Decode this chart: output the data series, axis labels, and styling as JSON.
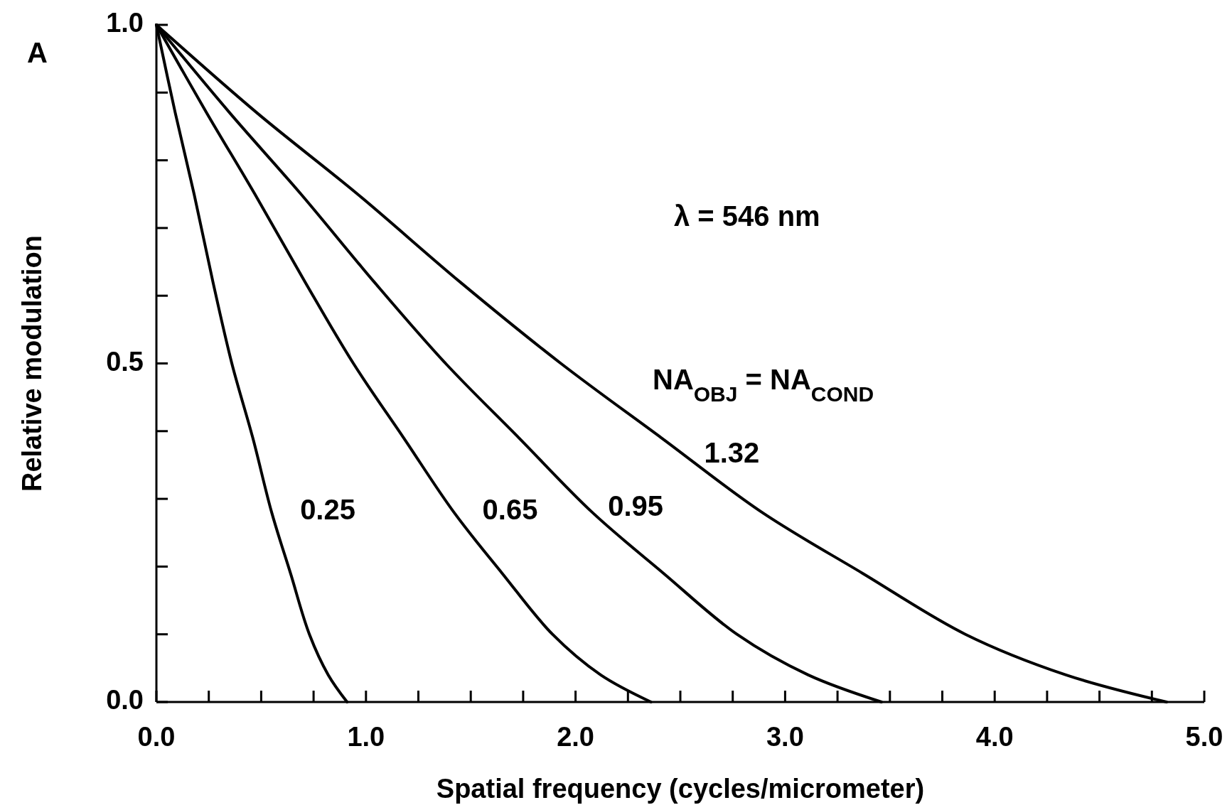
{
  "chart_data": {
    "type": "line",
    "xlabel": "Spatial frequency (cycles/micrometer)",
    "ylabel": "Relative modulation",
    "annotations": [
      "A",
      "λ = 546 nm",
      "NA$_{OBJ}$ = NA$_{COND}$"
    ],
    "xlim": [
      0,
      5
    ],
    "ylim": [
      0,
      1
    ],
    "xticks": [
      {
        "value": 0,
        "label": "0.0"
      },
      {
        "value": 0.25,
        "label": null
      },
      {
        "value": 0.5,
        "label": null
      },
      {
        "value": 0.75,
        "label": null
      },
      {
        "value": 1,
        "label": "1.0"
      },
      {
        "value": 1.25,
        "label": null
      },
      {
        "value": 1.5,
        "label": null
      },
      {
        "value": 1.75,
        "label": null
      },
      {
        "value": 2,
        "label": "2.0"
      },
      {
        "value": 2.25,
        "label": null
      },
      {
        "value": 2.5,
        "label": null
      },
      {
        "value": 2.75,
        "label": null
      },
      {
        "value": 3,
        "label": "3.0"
      },
      {
        "value": 3.25,
        "label": null
      },
      {
        "value": 3.5,
        "label": null
      },
      {
        "value": 3.75,
        "label": null
      },
      {
        "value": 4,
        "label": "4.0"
      },
      {
        "value": 4.25,
        "label": null
      },
      {
        "value": 4.5,
        "label": null
      },
      {
        "value": 4.75,
        "label": null
      },
      {
        "value": 5,
        "label": "5.0"
      }
    ],
    "yticks": [
      {
        "value": 0,
        "label": "0.0"
      },
      {
        "value": 0.1,
        "label": null
      },
      {
        "value": 0.2,
        "label": null
      },
      {
        "value": 0.3,
        "label": null
      },
      {
        "value": 0.4,
        "label": null
      },
      {
        "value": 0.5,
        "label": "0.5"
      },
      {
        "value": 0.6,
        "label": null
      },
      {
        "value": 0.7,
        "label": null
      },
      {
        "value": 0.8,
        "label": null
      },
      {
        "value": 0.9,
        "label": null
      },
      {
        "value": 1,
        "label": "1.0"
      }
    ],
    "grid": false,
    "marker": "none",
    "line_style": "solid",
    "series": [
      {
        "name": "0.25",
        "color": "#000000",
        "x": [
          0,
          0.09,
          0.18,
          0.27,
          0.36,
          0.46,
          0.55,
          0.64,
          0.73,
          0.82,
          0.91
        ],
        "values": [
          1,
          0.87,
          0.75,
          0.62,
          0.5,
          0.39,
          0.28,
          0.19,
          0.1,
          0.04,
          0
        ]
      },
      {
        "name": "0.65",
        "color": "#000000",
        "x": [
          0,
          0.24,
          0.47,
          0.71,
          0.94,
          1.18,
          1.42,
          1.65,
          1.89,
          2.12,
          2.36
        ],
        "values": [
          1,
          0.87,
          0.75,
          0.62,
          0.5,
          0.39,
          0.28,
          0.19,
          0.1,
          0.04,
          0
        ]
      },
      {
        "name": "0.95",
        "color": "#000000",
        "x": [
          0,
          0.35,
          0.69,
          1.04,
          1.38,
          1.73,
          2.08,
          2.42,
          2.77,
          3.11,
          3.46
        ],
        "values": [
          1,
          0.87,
          0.75,
          0.62,
          0.5,
          0.39,
          0.28,
          0.19,
          0.1,
          0.04,
          0
        ]
      },
      {
        "name": "1.32",
        "color": "#000000",
        "x": [
          0,
          0.48,
          0.96,
          1.45,
          1.93,
          2.41,
          2.89,
          3.37,
          3.86,
          4.34,
          4.82
        ],
        "values": [
          1,
          0.87,
          0.75,
          0.62,
          0.5,
          0.39,
          0.28,
          0.19,
          0.1,
          0.04,
          0
        ]
      }
    ]
  }
}
